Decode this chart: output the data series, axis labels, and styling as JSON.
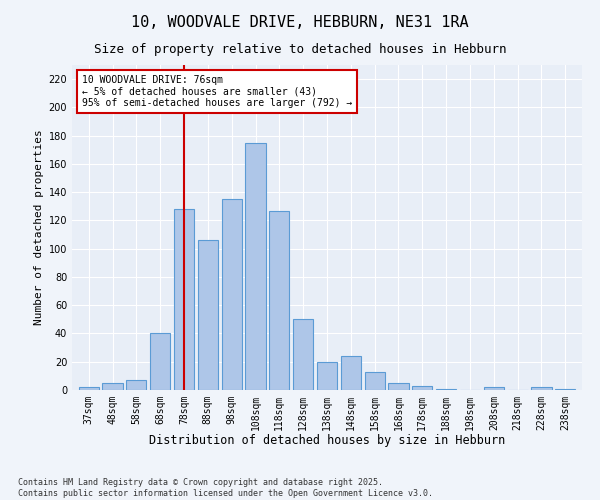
{
  "title1": "10, WOODVALE DRIVE, HEBBURN, NE31 1RA",
  "title2": "Size of property relative to detached houses in Hebburn",
  "xlabel": "Distribution of detached houses by size in Hebburn",
  "ylabel": "Number of detached properties",
  "categories": [
    "37sqm",
    "48sqm",
    "58sqm",
    "68sqm",
    "78sqm",
    "88sqm",
    "98sqm",
    "108sqm",
    "118sqm",
    "128sqm",
    "138sqm",
    "148sqm",
    "158sqm",
    "168sqm",
    "178sqm",
    "188sqm",
    "198sqm",
    "208sqm",
    "218sqm",
    "228sqm",
    "238sqm"
  ],
  "values": [
    2,
    5,
    7,
    40,
    128,
    106,
    135,
    175,
    127,
    50,
    20,
    24,
    13,
    5,
    3,
    1,
    0,
    2,
    0,
    2,
    1
  ],
  "bar_color": "#aec6e8",
  "bar_edge_color": "#5b9bd5",
  "vline_x": 4,
  "vline_color": "#cc0000",
  "annotation_text": "10 WOODVALE DRIVE: 76sqm\n← 5% of detached houses are smaller (43)\n95% of semi-detached houses are larger (792) →",
  "annotation_box_color": "#ffffff",
  "annotation_box_edge_color": "#cc0000",
  "ylim": [
    0,
    230
  ],
  "yticks": [
    0,
    20,
    40,
    60,
    80,
    100,
    120,
    140,
    160,
    180,
    200,
    220
  ],
  "bg_color": "#e8eef7",
  "fig_bg_color": "#f0f4fa",
  "footer": "Contains HM Land Registry data © Crown copyright and database right 2025.\nContains public sector information licensed under the Open Government Licence v3.0.",
  "title1_fontsize": 11,
  "title2_fontsize": 9,
  "xlabel_fontsize": 8.5,
  "ylabel_fontsize": 8,
  "tick_fontsize": 7,
  "footer_fontsize": 6,
  "ann_fontsize": 7
}
